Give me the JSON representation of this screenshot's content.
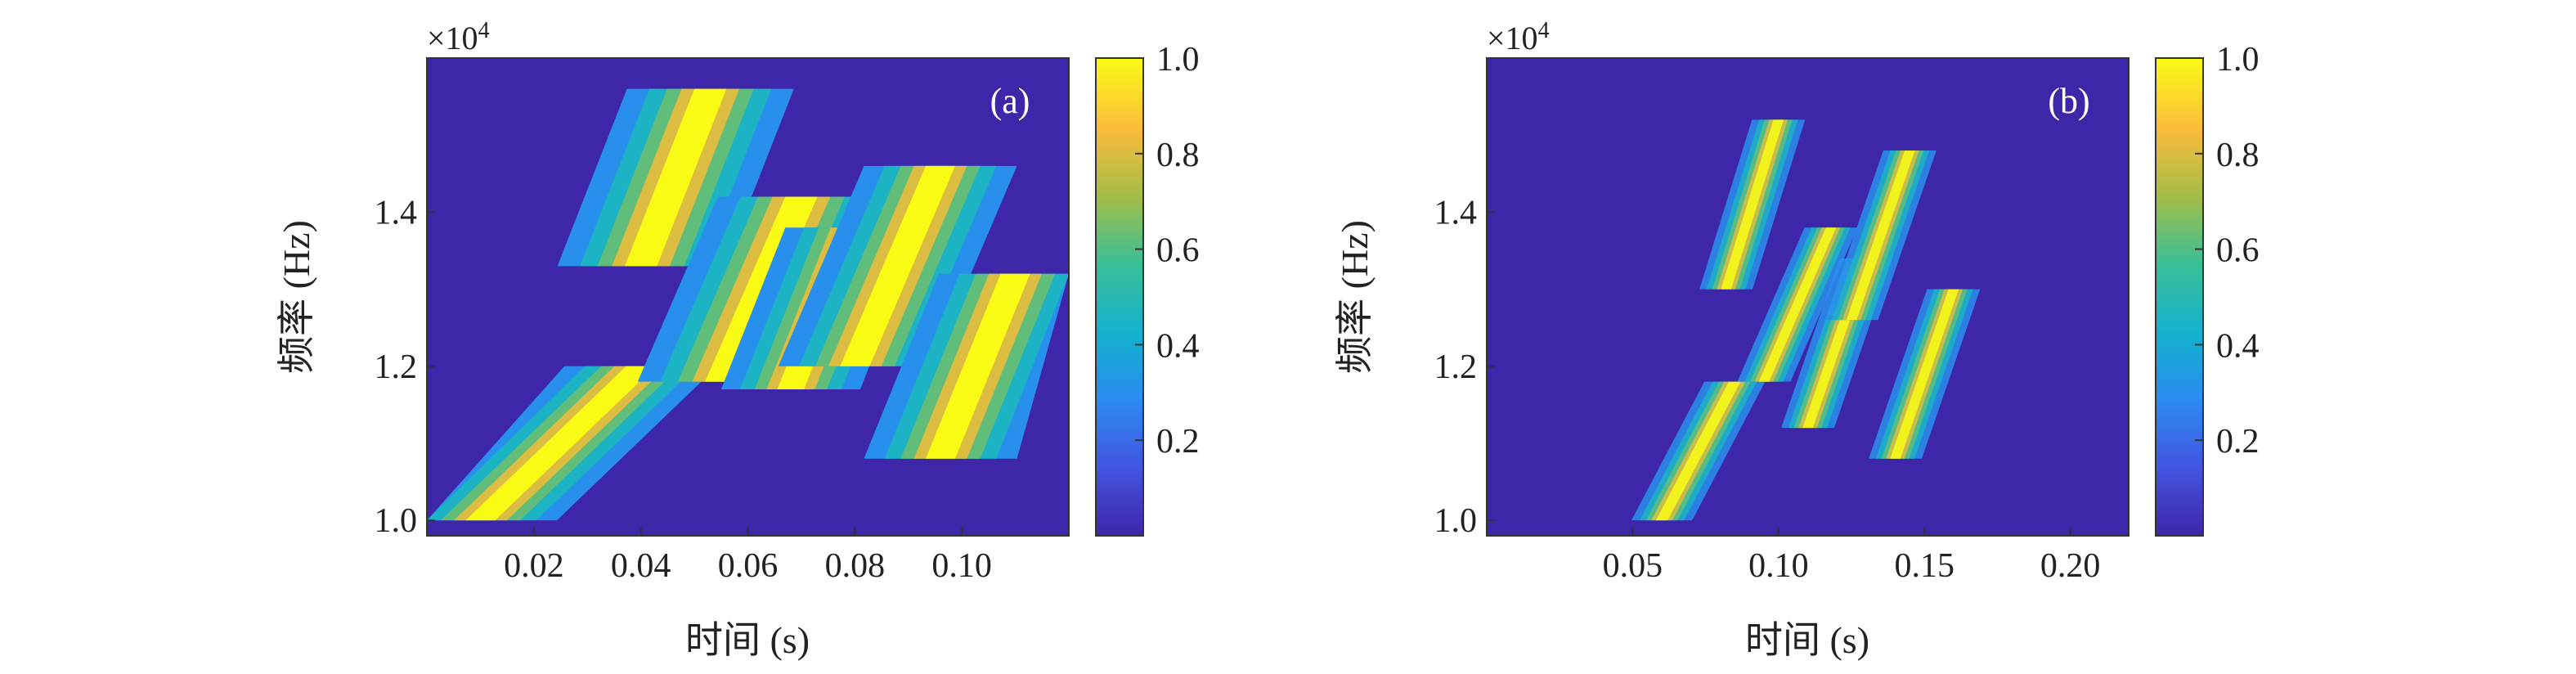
{
  "chart_data": [
    {
      "type": "heatmap",
      "panel_label": "(a)",
      "xlabel": "时间 (s)",
      "ylabel": "频率 (Hz)",
      "y_multiplier": "×10",
      "y_multiplier_exp": "4",
      "xlim": [
        0,
        0.12
      ],
      "ylim": [
        0.98,
        1.6
      ],
      "xticks": [
        0.02,
        0.04,
        0.06,
        0.08,
        0.1
      ],
      "xtick_labels": [
        "0.02",
        "0.04",
        "0.06",
        "0.08",
        "0.10"
      ],
      "yticks": [
        1.0,
        1.2,
        1.4
      ],
      "ytick_labels": [
        "1.0",
        "1.2",
        "1.4"
      ],
      "colorbar": {
        "range": [
          0,
          1
        ],
        "ticks": [
          0.2,
          0.4,
          0.6,
          0.8,
          1.0
        ],
        "tick_labels": [
          "0.2",
          "0.4",
          "0.6",
          "0.8",
          "1.0"
        ],
        "colormap": "parula"
      },
      "ridges": [
        {
          "t0": 0.01,
          "t1": 0.04,
          "f0": 1.0,
          "f1": 1.2,
          "width": 0.011
        },
        {
          "t0": 0.04,
          "t1": 0.053,
          "f0": 1.33,
          "f1": 1.56,
          "width": 0.012
        },
        {
          "t0": 0.055,
          "t1": 0.07,
          "f0": 1.18,
          "f1": 1.42,
          "width": 0.012
        },
        {
          "t0": 0.068,
          "t1": 0.08,
          "f0": 1.17,
          "f1": 1.38,
          "width": 0.01
        },
        {
          "t0": 0.08,
          "t1": 0.096,
          "f0": 1.2,
          "f1": 1.46,
          "width": 0.011
        },
        {
          "t0": 0.096,
          "t1": 0.11,
          "f0": 1.08,
          "f1": 1.32,
          "width": 0.011
        }
      ]
    },
    {
      "type": "heatmap",
      "panel_label": "(b)",
      "xlabel": "时间 (s)",
      "ylabel": "频率 (Hz)",
      "y_multiplier": "×10",
      "y_multiplier_exp": "4",
      "xlim": [
        0,
        0.22
      ],
      "ylim": [
        0.98,
        1.6
      ],
      "xticks": [
        0.05,
        0.1,
        0.15,
        0.2
      ],
      "xtick_labels": [
        "0.05",
        "0.10",
        "0.15",
        "0.20"
      ],
      "yticks": [
        1.0,
        1.2,
        1.4
      ],
      "ytick_labels": [
        "1.0",
        "1.2",
        "1.4"
      ],
      "colorbar": {
        "range": [
          0,
          1
        ],
        "ticks": [
          0.2,
          0.4,
          0.6,
          0.8,
          1.0
        ],
        "tick_labels": [
          "0.2",
          "0.4",
          "0.6",
          "0.8",
          "1.0"
        ],
        "colormap": "parula"
      },
      "ridges": [
        {
          "t0": 0.06,
          "t1": 0.085,
          "f0": 1.0,
          "f1": 1.18,
          "width": 0.008
        },
        {
          "t0": 0.082,
          "t1": 0.1,
          "f0": 1.3,
          "f1": 1.52,
          "width": 0.007
        },
        {
          "t0": 0.095,
          "t1": 0.118,
          "f0": 1.18,
          "f1": 1.38,
          "width": 0.007
        },
        {
          "t0": 0.11,
          "t1": 0.13,
          "f0": 1.12,
          "f1": 1.34,
          "width": 0.007
        },
        {
          "t0": 0.125,
          "t1": 0.145,
          "f0": 1.26,
          "f1": 1.48,
          "width": 0.007
        },
        {
          "t0": 0.14,
          "t1": 0.16,
          "f0": 1.08,
          "f1": 1.3,
          "width": 0.007
        }
      ]
    }
  ]
}
